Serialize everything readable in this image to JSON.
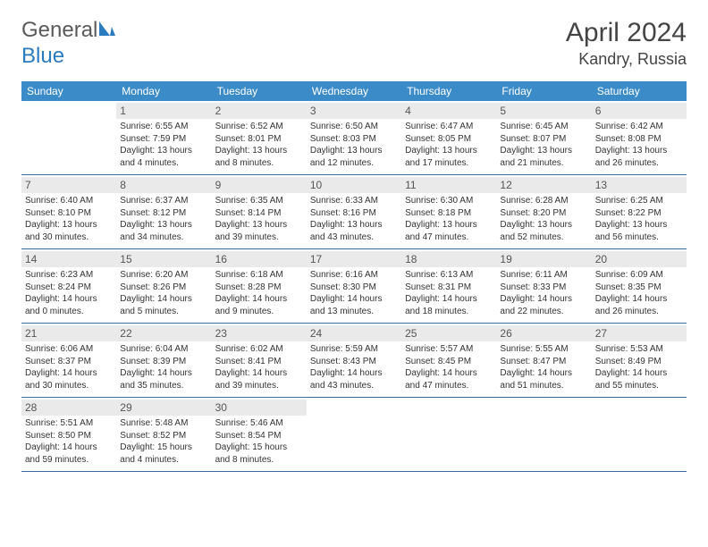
{
  "brand": {
    "part1": "General",
    "part2": "Blue"
  },
  "title": "April 2024",
  "location": "Kandry, Russia",
  "colors": {
    "header_bg": "#3b8bc9",
    "header_text": "#ffffff",
    "daynum_bg": "#eaeaea",
    "daynum_text": "#555555",
    "rule": "#3b6b9a",
    "body_text": "#333333",
    "title_text": "#444444",
    "logo_gray": "#5a5a5a",
    "logo_blue": "#2b7bbf"
  },
  "day_names": [
    "Sunday",
    "Monday",
    "Tuesday",
    "Wednesday",
    "Thursday",
    "Friday",
    "Saturday"
  ],
  "weeks": [
    [
      null,
      {
        "n": "1",
        "sr": "6:55 AM",
        "ss": "7:59 PM",
        "d1": "13 hours",
        "d2": "4 minutes"
      },
      {
        "n": "2",
        "sr": "6:52 AM",
        "ss": "8:01 PM",
        "d1": "13 hours",
        "d2": "8 minutes"
      },
      {
        "n": "3",
        "sr": "6:50 AM",
        "ss": "8:03 PM",
        "d1": "13 hours",
        "d2": "12 minutes"
      },
      {
        "n": "4",
        "sr": "6:47 AM",
        "ss": "8:05 PM",
        "d1": "13 hours",
        "d2": "17 minutes"
      },
      {
        "n": "5",
        "sr": "6:45 AM",
        "ss": "8:07 PM",
        "d1": "13 hours",
        "d2": "21 minutes"
      },
      {
        "n": "6",
        "sr": "6:42 AM",
        "ss": "8:08 PM",
        "d1": "13 hours",
        "d2": "26 minutes"
      }
    ],
    [
      {
        "n": "7",
        "sr": "6:40 AM",
        "ss": "8:10 PM",
        "d1": "13 hours",
        "d2": "30 minutes"
      },
      {
        "n": "8",
        "sr": "6:37 AM",
        "ss": "8:12 PM",
        "d1": "13 hours",
        "d2": "34 minutes"
      },
      {
        "n": "9",
        "sr": "6:35 AM",
        "ss": "8:14 PM",
        "d1": "13 hours",
        "d2": "39 minutes"
      },
      {
        "n": "10",
        "sr": "6:33 AM",
        "ss": "8:16 PM",
        "d1": "13 hours",
        "d2": "43 minutes"
      },
      {
        "n": "11",
        "sr": "6:30 AM",
        "ss": "8:18 PM",
        "d1": "13 hours",
        "d2": "47 minutes"
      },
      {
        "n": "12",
        "sr": "6:28 AM",
        "ss": "8:20 PM",
        "d1": "13 hours",
        "d2": "52 minutes"
      },
      {
        "n": "13",
        "sr": "6:25 AM",
        "ss": "8:22 PM",
        "d1": "13 hours",
        "d2": "56 minutes"
      }
    ],
    [
      {
        "n": "14",
        "sr": "6:23 AM",
        "ss": "8:24 PM",
        "d1": "14 hours",
        "d2": "0 minutes"
      },
      {
        "n": "15",
        "sr": "6:20 AM",
        "ss": "8:26 PM",
        "d1": "14 hours",
        "d2": "5 minutes"
      },
      {
        "n": "16",
        "sr": "6:18 AM",
        "ss": "8:28 PM",
        "d1": "14 hours",
        "d2": "9 minutes"
      },
      {
        "n": "17",
        "sr": "6:16 AM",
        "ss": "8:30 PM",
        "d1": "14 hours",
        "d2": "13 minutes"
      },
      {
        "n": "18",
        "sr": "6:13 AM",
        "ss": "8:31 PM",
        "d1": "14 hours",
        "d2": "18 minutes"
      },
      {
        "n": "19",
        "sr": "6:11 AM",
        "ss": "8:33 PM",
        "d1": "14 hours",
        "d2": "22 minutes"
      },
      {
        "n": "20",
        "sr": "6:09 AM",
        "ss": "8:35 PM",
        "d1": "14 hours",
        "d2": "26 minutes"
      }
    ],
    [
      {
        "n": "21",
        "sr": "6:06 AM",
        "ss": "8:37 PM",
        "d1": "14 hours",
        "d2": "30 minutes"
      },
      {
        "n": "22",
        "sr": "6:04 AM",
        "ss": "8:39 PM",
        "d1": "14 hours",
        "d2": "35 minutes"
      },
      {
        "n": "23",
        "sr": "6:02 AM",
        "ss": "8:41 PM",
        "d1": "14 hours",
        "d2": "39 minutes"
      },
      {
        "n": "24",
        "sr": "5:59 AM",
        "ss": "8:43 PM",
        "d1": "14 hours",
        "d2": "43 minutes"
      },
      {
        "n": "25",
        "sr": "5:57 AM",
        "ss": "8:45 PM",
        "d1": "14 hours",
        "d2": "47 minutes"
      },
      {
        "n": "26",
        "sr": "5:55 AM",
        "ss": "8:47 PM",
        "d1": "14 hours",
        "d2": "51 minutes"
      },
      {
        "n": "27",
        "sr": "5:53 AM",
        "ss": "8:49 PM",
        "d1": "14 hours",
        "d2": "55 minutes"
      }
    ],
    [
      {
        "n": "28",
        "sr": "5:51 AM",
        "ss": "8:50 PM",
        "d1": "14 hours",
        "d2": "59 minutes"
      },
      {
        "n": "29",
        "sr": "5:48 AM",
        "ss": "8:52 PM",
        "d1": "15 hours",
        "d2": "4 minutes"
      },
      {
        "n": "30",
        "sr": "5:46 AM",
        "ss": "8:54 PM",
        "d1": "15 hours",
        "d2": "8 minutes"
      },
      null,
      null,
      null,
      null
    ]
  ],
  "labels": {
    "sunrise": "Sunrise:",
    "sunset": "Sunset:",
    "daylight": "Daylight:",
    "and": "and"
  }
}
